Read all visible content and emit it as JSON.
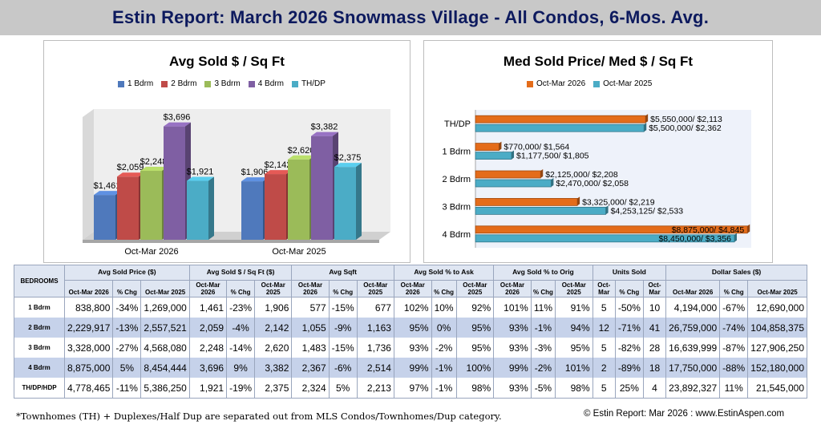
{
  "header": {
    "title": "Estin Report:  March 2026 Snowmass Village - All Condos,  6-Mos. Avg."
  },
  "colors": {
    "1 Bdrm": "#4f79bc",
    "2 Bdrm": "#bf4b48",
    "3 Bdrm": "#9bbb59",
    "4 Bdrm": "#7f5fa3",
    "TH/DP": "#4bacc6",
    "orange": "#e46c1a",
    "teal": "#4bacc6"
  },
  "chart_data": [
    {
      "type": "bar",
      "title": "Avg Sold $ / Sq Ft",
      "categories": [
        "Oct-Mar 2026",
        "Oct-Mar 2025"
      ],
      "series": [
        {
          "name": "1 Bdrm",
          "values": [
            1461,
            1906
          ],
          "labels": [
            "$1,461",
            "$1,906"
          ]
        },
        {
          "name": "2 Bdrm",
          "values": [
            2059,
            2142
          ],
          "labels": [
            "$2,059",
            "$2,142"
          ]
        },
        {
          "name": "3 Bdrm",
          "values": [
            2248,
            2620
          ],
          "labels": [
            "$2,248",
            "$2,620"
          ]
        },
        {
          "name": "4 Bdrm",
          "values": [
            3696,
            3382
          ],
          "labels": [
            "$3,696",
            "$3,382"
          ]
        },
        {
          "name": "TH/DP",
          "values": [
            1921,
            2375
          ],
          "labels": [
            "$1,921",
            "$2,375"
          ]
        }
      ],
      "ylim": [
        0,
        4000
      ],
      "legend": "top"
    },
    {
      "type": "bar",
      "orientation": "horizontal",
      "title": "Med Sold Price/ Med $ / Sq Ft",
      "categories": [
        "TH/DP",
        "1 Bdrm",
        "2 Bdrm",
        "3 Bdrm",
        "4 Bdrm"
      ],
      "series": [
        {
          "name": "Oct-Mar 2026",
          "values": [
            5550000,
            770000,
            2125000,
            3325000,
            8875000
          ],
          "labels": [
            "$5,550,000/ $2,113",
            "$770,000/ $1,564",
            "$2,125,000/ $2,208",
            "$3,325,000/ $2,219",
            "$8,875,000/ $4,845"
          ]
        },
        {
          "name": "Oct-Mar 2025",
          "values": [
            5500000,
            1177500,
            2470000,
            4253125,
            8450000
          ],
          "labels": [
            "$5,500,000/ $2,362",
            "$1,177,500/ $1,805",
            "$2,470,000/ $2,058",
            "$4,253,125/ $2,533",
            "$8,450,000/ $3,356"
          ]
        }
      ],
      "xlim": [
        0,
        9000000
      ],
      "legend": "top"
    }
  ],
  "table": {
    "bedrooms_header": "BEDROOMS",
    "groups": [
      "Avg Sold Price ($)",
      "Avg Sold $ / Sq Ft ($)",
      "Avg Sqft",
      "Avg Sold % to Ask",
      "Avg Sold % to Orig",
      "Units Sold",
      "Dollar Sales ($)"
    ],
    "subheaders": [
      [
        "Oct-Mar 2026",
        "% Chg",
        "Oct-Mar 2025"
      ],
      [
        "Oct-Mar 2026",
        "% Chg",
        "Oct-Mar 2025"
      ],
      [
        "Oct-Mar 2026",
        "% Chg",
        "Oct-Mar 2025"
      ],
      [
        "Oct-Mar 2026",
        "% Chg",
        "Oct-Mar 2025"
      ],
      [
        "Oct-Mar 2026",
        "% Chg",
        "Oct-Mar 2025"
      ],
      [
        "Oct-Mar",
        "% Chg",
        "Oct-Mar"
      ],
      [
        "Oct-Mar 2026",
        "% Chg",
        "Oct-Mar 2025"
      ]
    ],
    "rows": [
      {
        "label": "1 Bdrm",
        "cells": [
          "838,800",
          "-34%",
          "1,269,000",
          "1,461",
          "-23%",
          "1,906",
          "577",
          "-15%",
          "677",
          "102%",
          "10%",
          "92%",
          "101%",
          "11%",
          "91%",
          "5",
          "-50%",
          "10",
          "4,194,000",
          "-67%",
          "12,690,000"
        ]
      },
      {
        "label": "2 Bdrm",
        "cells": [
          "2,229,917",
          "-13%",
          "2,557,521",
          "2,059",
          "-4%",
          "2,142",
          "1,055",
          "-9%",
          "1,163",
          "95%",
          "0%",
          "95%",
          "93%",
          "-1%",
          "94%",
          "12",
          "-71%",
          "41",
          "26,759,000",
          "-74%",
          "104,858,375"
        ]
      },
      {
        "label": "3 Bdrm",
        "cells": [
          "3,328,000",
          "-27%",
          "4,568,080",
          "2,248",
          "-14%",
          "2,620",
          "1,483",
          "-15%",
          "1,736",
          "93%",
          "-2%",
          "95%",
          "93%",
          "-3%",
          "95%",
          "5",
          "-82%",
          "28",
          "16,639,999",
          "-87%",
          "127,906,250"
        ]
      },
      {
        "label": "4 Bdrm",
        "cells": [
          "8,875,000",
          "5%",
          "8,454,444",
          "3,696",
          "9%",
          "3,382",
          "2,367",
          "-6%",
          "2,514",
          "99%",
          "-1%",
          "100%",
          "99%",
          "-2%",
          "101%",
          "2",
          "-89%",
          "18",
          "17,750,000",
          "-88%",
          "152,180,000"
        ]
      },
      {
        "label": "TH/DP/HDP",
        "cells": [
          "4,778,465",
          "-11%",
          "5,386,250",
          "1,921",
          "-19%",
          "2,375",
          "2,324",
          "5%",
          "2,213",
          "97%",
          "-1%",
          "98%",
          "93%",
          "-5%",
          "98%",
          "5",
          "25%",
          "4",
          "23,892,327",
          "11%",
          "21,545,000"
        ]
      }
    ]
  },
  "footer": {
    "note": "*Townhomes (TH) + Duplexes/Half Dup are separated out from MLS Condos/Townhomes/Dup category.",
    "copyright": "© Estin Report: Mar 2026 : www.EstinAspen.com"
  }
}
